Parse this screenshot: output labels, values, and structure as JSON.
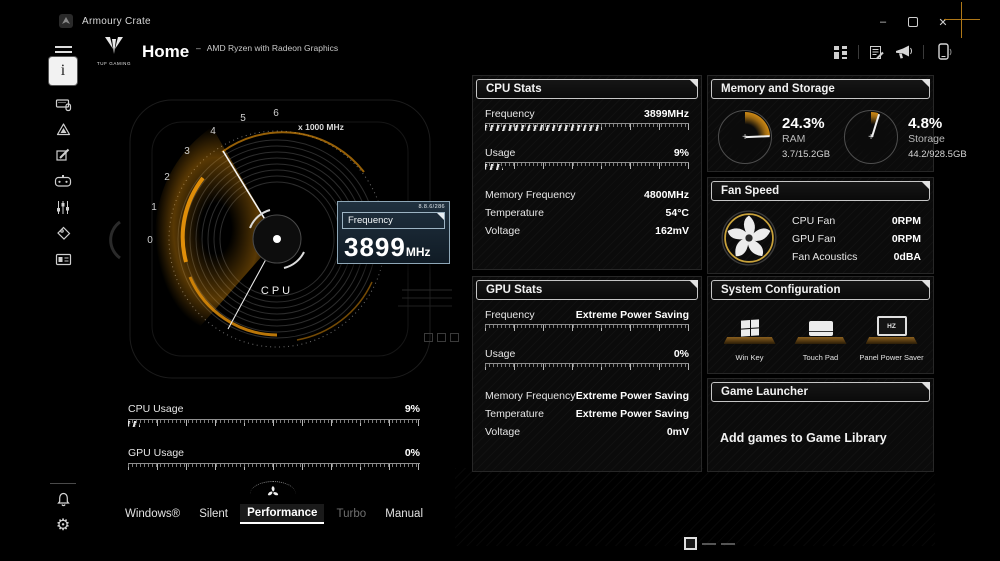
{
  "titlebar": {
    "app_name": "Armoury Crate",
    "minimize_glyph": "–",
    "close_glyph": "✕"
  },
  "header": {
    "title": "Home",
    "separator": "–",
    "subtitle": "AMD Ryzen with Radeon Graphics",
    "brand": "TUF GAMING",
    "info_glyph": "i"
  },
  "gauge": {
    "scale_label": "x 1000 MHz",
    "scale": [
      "0",
      "1",
      "2",
      "3",
      "4",
      "5",
      "6"
    ],
    "center_label": "CPU",
    "tooltip": {
      "code": "8.8.6/286",
      "label": "Frequency",
      "value": "3899",
      "unit": "MHz"
    }
  },
  "usage": {
    "cpu_label": "CPU Usage",
    "cpu_value": "9%",
    "cpu_bar": 4,
    "gpu_label": "GPU Usage",
    "gpu_value": "0%",
    "gpu_bar": 0
  },
  "modes": {
    "items": [
      {
        "label": "Windows®",
        "state": "normal"
      },
      {
        "label": "Silent",
        "state": "normal"
      },
      {
        "label": "Performance",
        "state": "active"
      },
      {
        "label": "Turbo",
        "state": "disabled"
      },
      {
        "label": "Manual",
        "state": "normal"
      }
    ]
  },
  "panels": {
    "cpu_stats": {
      "title": "CPU Stats",
      "rows": [
        {
          "label": "Frequency",
          "value": "3899MHz",
          "bar": 56
        },
        {
          "label": "Usage",
          "value": "9%",
          "bar": 9
        },
        {
          "label": "Memory Frequency",
          "value": "4800MHz"
        },
        {
          "label": "Temperature",
          "value": "54°C"
        },
        {
          "label": "Voltage",
          "value": "162mV"
        }
      ]
    },
    "gpu_stats": {
      "title": "GPU Stats",
      "rows": [
        {
          "label": "Frequency",
          "value": "Extreme Power Saving",
          "bar": 0
        },
        {
          "label": "Usage",
          "value": "0%",
          "bar": 0
        },
        {
          "label": "Memory Frequency",
          "value": "Extreme Power Saving"
        },
        {
          "label": "Temperature",
          "value": "Extreme Power Saving"
        },
        {
          "label": "Voltage",
          "value": "0mV"
        }
      ]
    },
    "memory_storage": {
      "title": "Memory and Storage",
      "gauges": [
        {
          "percent": "24.3%",
          "value": 24.3,
          "label": "RAM",
          "detail": "3.7/15.2GB"
        },
        {
          "percent": "4.8%",
          "value": 4.8,
          "label": "Storage",
          "detail": "44.2/928.5GB"
        }
      ]
    },
    "fan_speed": {
      "title": "Fan Speed",
      "rows": [
        {
          "label": "CPU Fan",
          "value": "0RPM"
        },
        {
          "label": "GPU Fan",
          "value": "0RPM"
        },
        {
          "label": "Fan Acoustics",
          "value": "0dBA"
        }
      ]
    },
    "system_config": {
      "title": "System Configuration",
      "items": [
        {
          "label": "Win Key"
        },
        {
          "label": "Touch Pad"
        },
        {
          "label": "Panel Power Saver",
          "badge": "HZ"
        }
      ]
    },
    "game_launcher": {
      "title": "Game Launcher",
      "empty_text": "Add games to Game Library"
    }
  },
  "colors": {
    "accent_orange": "#e8940a",
    "tooltip_bg": "#16232e",
    "tooltip_border": "#8ea7b7"
  }
}
